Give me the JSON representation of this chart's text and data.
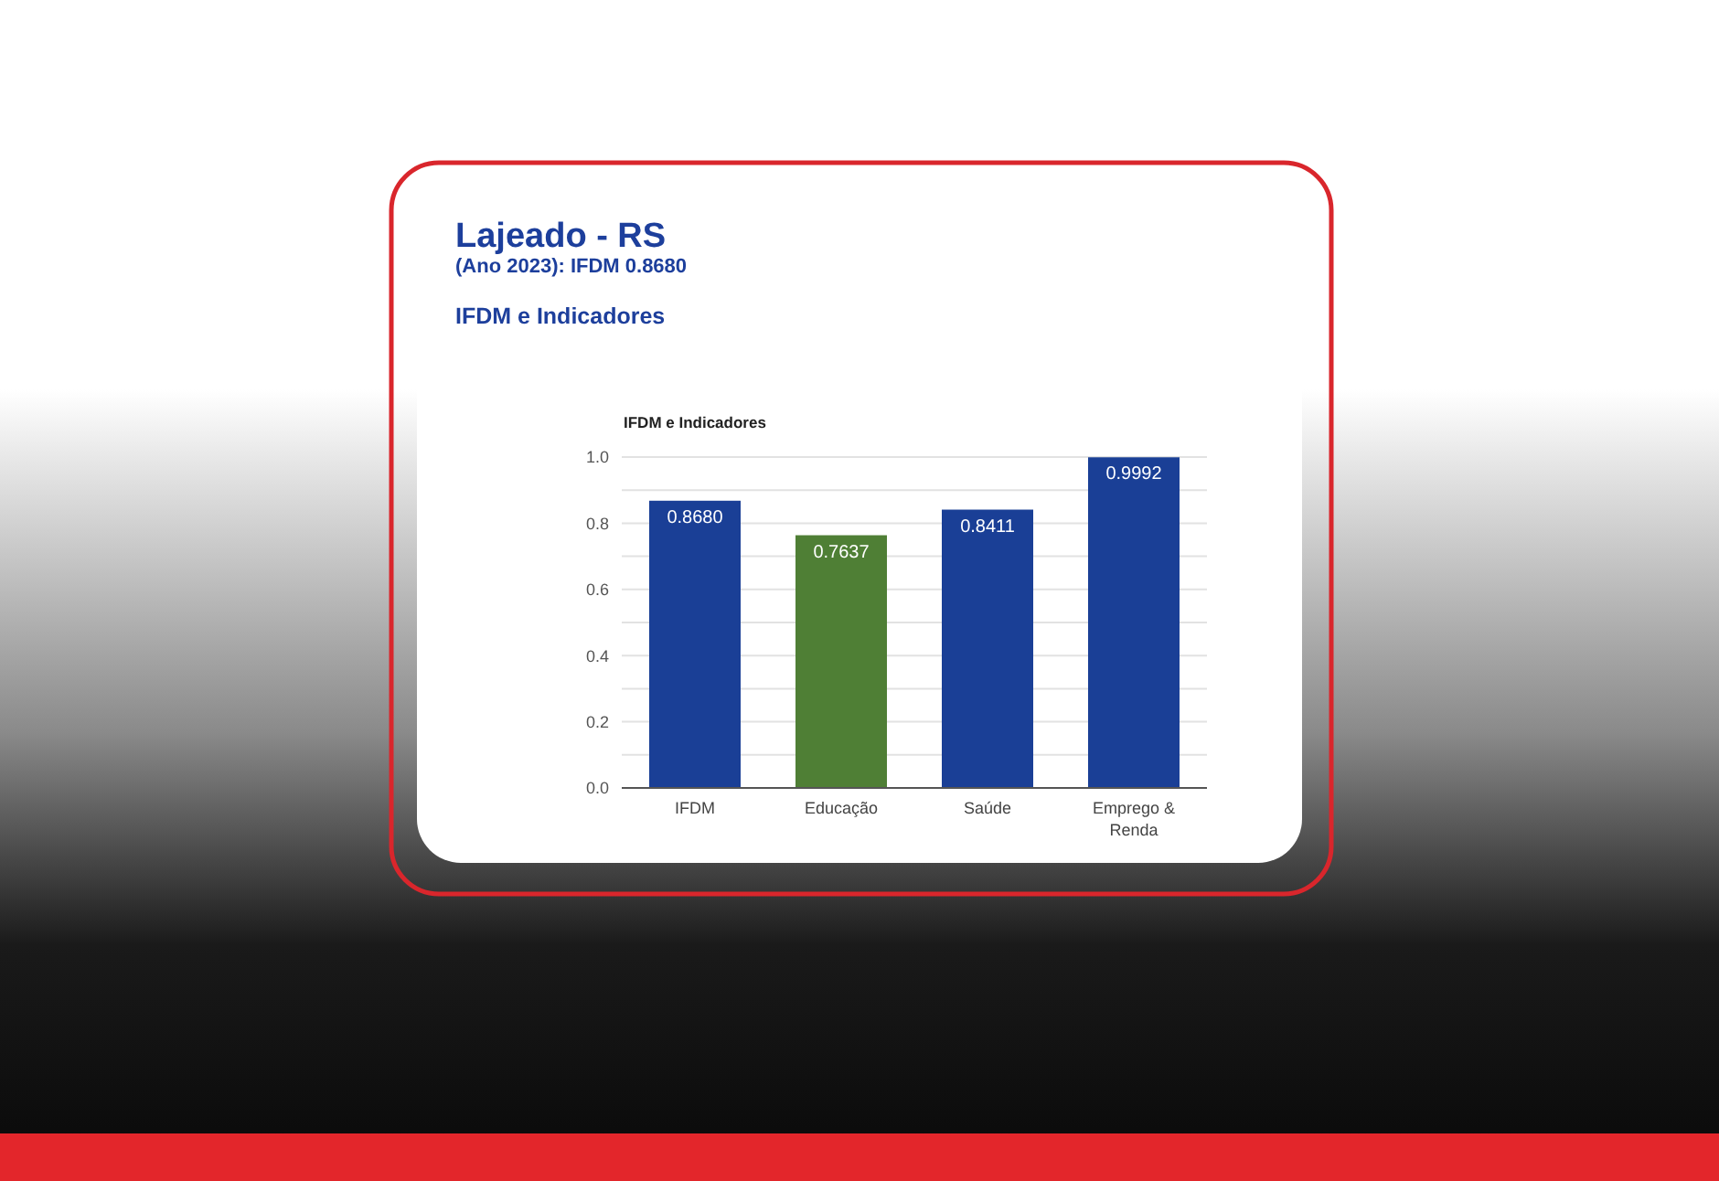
{
  "chart_data": {
    "type": "bar",
    "title": "Lajeado - RS",
    "subtitle": "(Ano 2023): IFDM 0.8680",
    "annotations": [
      "IFDM e Indicadores",
      "IFDM e Indicadores"
    ],
    "categories": [
      "IFDM",
      "Educação",
      "Saúde",
      "Emprego & Renda"
    ],
    "values": [
      0.868,
      0.7637,
      0.8411,
      0.9992
    ],
    "colors": [
      "#1a3f96",
      "#4f7f35",
      "#1a3f96",
      "#1a3f96"
    ],
    "value_labels": [
      "0.8680",
      "0.7637",
      "0.8411",
      "0.9992"
    ],
    "ylim": [
      0,
      1
    ],
    "yticks": [
      {
        "value": 0,
        "label": "0.0"
      },
      {
        "value": 0.1,
        "label": null
      },
      {
        "value": 0.2,
        "label": "0.2"
      },
      {
        "value": 0.3,
        "label": null
      },
      {
        "value": 0.4,
        "label": "0.4"
      },
      {
        "value": 0.5,
        "label": null
      },
      {
        "value": 0.6,
        "label": "0.6"
      },
      {
        "value": 0.7,
        "label": null
      },
      {
        "value": 0.8,
        "label": "0.8"
      },
      {
        "value": 0.9,
        "label": null
      },
      {
        "value": 1,
        "label": "1.0"
      }
    ],
    "grid": "y"
  }
}
